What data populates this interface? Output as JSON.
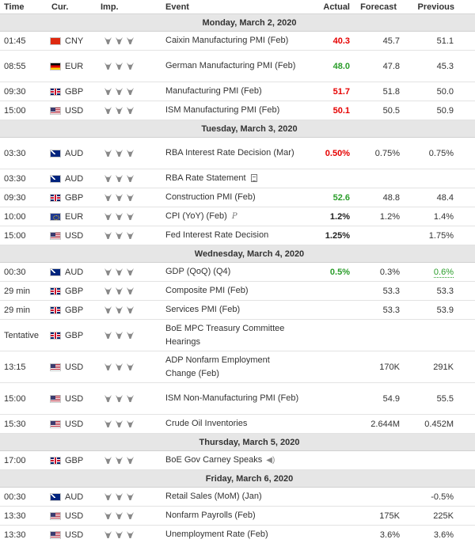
{
  "headers": {
    "time": "Time",
    "cur": "Cur.",
    "imp": "Imp.",
    "event": "Event",
    "actual": "Actual",
    "forecast": "Forecast",
    "previous": "Previous"
  },
  "days": [
    {
      "label": "Monday, March 2, 2020",
      "rows": [
        {
          "time": "01:45",
          "flag": "CNY",
          "cur": "CNY",
          "event": "Caixin Manufacturing PMI (Feb)",
          "actual": "40.3",
          "actual_color": "red",
          "forecast": "45.7",
          "previous": "51.1"
        },
        {
          "time": "08:55",
          "flag": "DE",
          "cur": "EUR",
          "event": "German Manufacturing PMI (Feb)",
          "actual": "48.0",
          "actual_color": "green",
          "forecast": "47.8",
          "previous": "45.3",
          "tall": true
        },
        {
          "time": "09:30",
          "flag": "GBP",
          "cur": "GBP",
          "event": "Manufacturing PMI (Feb)",
          "actual": "51.7",
          "actual_color": "red",
          "forecast": "51.8",
          "previous": "50.0"
        },
        {
          "time": "15:00",
          "flag": "USD",
          "cur": "USD",
          "event": "ISM Manufacturing PMI (Feb)",
          "actual": "50.1",
          "actual_color": "red",
          "forecast": "50.5",
          "previous": "50.9"
        }
      ]
    },
    {
      "label": "Tuesday, March 3, 2020",
      "rows": [
        {
          "time": "03:30",
          "flag": "AUD",
          "cur": "AUD",
          "event": "RBA Interest Rate Decision (Mar)",
          "actual": "0.50%",
          "actual_color": "red",
          "forecast": "0.75%",
          "previous": "0.75%",
          "tall": true
        },
        {
          "time": "03:30",
          "flag": "AUD",
          "cur": "AUD",
          "event": "RBA Rate Statement",
          "icon": "document-icon",
          "actual": "",
          "forecast": "",
          "previous": ""
        },
        {
          "time": "09:30",
          "flag": "GBP",
          "cur": "GBP",
          "event": "Construction PMI (Feb)",
          "actual": "52.6",
          "actual_color": "green",
          "forecast": "48.8",
          "previous": "48.4"
        },
        {
          "time": "10:00",
          "flag": "EU",
          "cur": "EUR",
          "event": "CPI (YoY) (Feb)",
          "icon": "preliminary-icon",
          "icon_text": "P",
          "actual": "1.2%",
          "actual_color": "black",
          "forecast": "1.2%",
          "previous": "1.4%"
        },
        {
          "time": "15:00",
          "flag": "USD",
          "cur": "USD",
          "event": "Fed Interest Rate Decision",
          "actual": "1.25%",
          "actual_color": "black",
          "forecast": "",
          "previous": "1.75%"
        }
      ]
    },
    {
      "label": "Wednesday, March 4, 2020",
      "rows": [
        {
          "time": "00:30",
          "flag": "AUD",
          "cur": "AUD",
          "event": "GDP (QoQ) (Q4)",
          "actual": "0.5%",
          "actual_color": "green",
          "forecast": "0.3%",
          "previous": "0.6%",
          "previous_color": "green"
        },
        {
          "time": "29 min",
          "flag": "GBP",
          "cur": "GBP",
          "event": "Composite PMI (Feb)",
          "actual": "",
          "forecast": "53.3",
          "previous": "53.3"
        },
        {
          "time": "29 min",
          "flag": "GBP",
          "cur": "GBP",
          "event": "Services PMI (Feb)",
          "actual": "",
          "forecast": "53.3",
          "previous": "53.9"
        },
        {
          "time": "Tentative",
          "flag": "GBP",
          "cur": "GBP",
          "event": "BoE MPC Treasury Committee Hearings",
          "actual": "",
          "forecast": "",
          "previous": "",
          "tall": true
        },
        {
          "time": "13:15",
          "flag": "USD",
          "cur": "USD",
          "event": "ADP Nonfarm Employment Change (Feb)",
          "actual": "",
          "forecast": "170K",
          "previous": "291K",
          "tall": true
        },
        {
          "time": "15:00",
          "flag": "USD",
          "cur": "USD",
          "event": "ISM Non-Manufacturing PMI (Feb)",
          "actual": "",
          "forecast": "54.9",
          "previous": "55.5",
          "tall": true
        },
        {
          "time": "15:30",
          "flag": "USD",
          "cur": "USD",
          "event": "Crude Oil Inventories",
          "actual": "",
          "forecast": "2.644M",
          "previous": "0.452M"
        }
      ]
    },
    {
      "label": "Thursday, March 5, 2020",
      "rows": [
        {
          "time": "17:00",
          "flag": "GBP",
          "cur": "GBP",
          "event": "BoE Gov Carney Speaks",
          "icon": "speaker-icon",
          "actual": "",
          "forecast": "",
          "previous": ""
        }
      ]
    },
    {
      "label": "Friday, March 6, 2020",
      "rows": [
        {
          "time": "00:30",
          "flag": "AUD",
          "cur": "AUD",
          "event": "Retail Sales (MoM) (Jan)",
          "actual": "",
          "forecast": "",
          "previous": "-0.5%"
        },
        {
          "time": "13:30",
          "flag": "USD",
          "cur": "USD",
          "event": "Nonfarm Payrolls (Feb)",
          "actual": "",
          "forecast": "175K",
          "previous": "225K"
        },
        {
          "time": "13:30",
          "flag": "USD",
          "cur": "USD",
          "event": "Unemployment Rate (Feb)",
          "actual": "",
          "forecast": "3.6%",
          "previous": "3.6%"
        }
      ]
    }
  ]
}
